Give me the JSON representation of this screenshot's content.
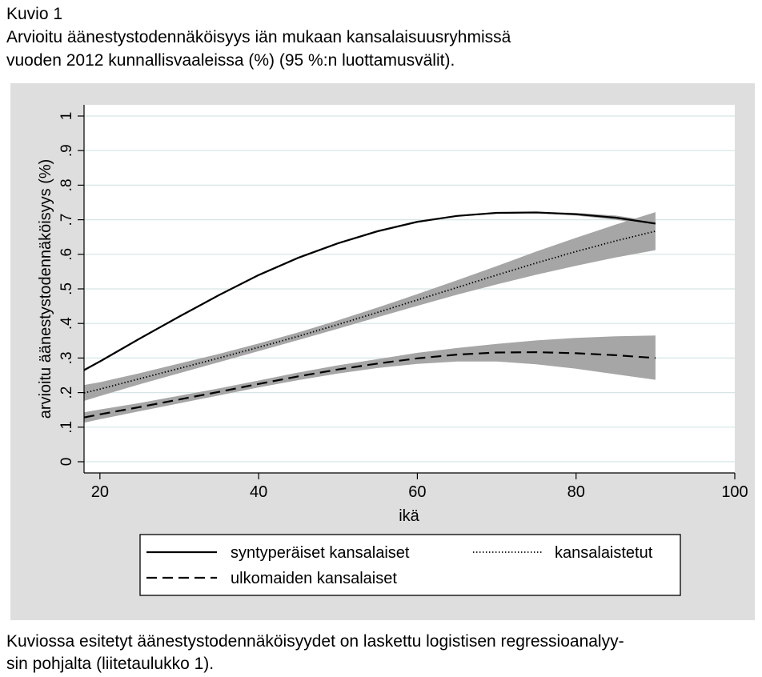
{
  "header": {
    "figure_label": "Kuvio 1",
    "title_line1": "Arvioitu äänestystodennäköisyys iän mukaan kansalaisuusryhmissä",
    "title_line2": "vuoden 2012 kunnallisvaaleissa (%) (95 %:n luottamusvälit)."
  },
  "footer": {
    "line1": "Kuviossa esitetyt äänestystodennäköisyydet on laskettu logistisen regressioanalyy-",
    "line2": "sin pohjalta (liitetaulukko 1)."
  },
  "colors": {
    "panel_background": "#dedede",
    "plot_background": "#ffffff",
    "gridline": "#d6e4e4",
    "confidence_band": "#a6a6a6",
    "line": "#000000"
  },
  "chart_data": {
    "type": "line",
    "title": "",
    "xlabel": "ikä",
    "ylabel": "arvioitu äänestystodennäköisyys (%)",
    "xlim": [
      18,
      100
    ],
    "ylim": [
      0,
      1
    ],
    "xticks": [
      20,
      40,
      60,
      80,
      100
    ],
    "xtick_labels": [
      "20",
      "40",
      "60",
      "80",
      "100"
    ],
    "yticks": [
      0,
      0.1,
      0.2,
      0.3,
      0.4,
      0.5,
      0.6,
      0.7,
      0.8,
      0.9,
      1
    ],
    "ytick_labels": [
      "0",
      ".1",
      ".2",
      ".3",
      ".4",
      ".5",
      ".6",
      ".7",
      ".8",
      ".9",
      "1"
    ],
    "grid": true,
    "legend_position": "bottom",
    "x": [
      18,
      20,
      25,
      30,
      35,
      40,
      45,
      50,
      55,
      60,
      65,
      70,
      75,
      80,
      85,
      90
    ],
    "series": [
      {
        "name": "syntyperäiset kansalaiset",
        "style": "solid",
        "values": [
          0.265,
          0.29,
          0.356,
          0.42,
          0.482,
          0.54,
          0.59,
          0.632,
          0.667,
          0.694,
          0.711,
          0.72,
          0.721,
          0.716,
          0.706,
          0.689
        ],
        "ci_lower": [
          0.262,
          0.287,
          0.353,
          0.417,
          0.479,
          0.537,
          0.587,
          0.629,
          0.664,
          0.691,
          0.709,
          0.718,
          0.719,
          0.712,
          0.7,
          0.683
        ],
        "ci_upper": [
          0.268,
          0.293,
          0.359,
          0.423,
          0.485,
          0.543,
          0.593,
          0.635,
          0.67,
          0.697,
          0.713,
          0.722,
          0.723,
          0.72,
          0.712,
          0.695
        ]
      },
      {
        "name": "kansalaistetut",
        "style": "dotted",
        "values": [
          0.199,
          0.21,
          0.24,
          0.27,
          0.3,
          0.331,
          0.363,
          0.397,
          0.432,
          0.468,
          0.504,
          0.54,
          0.575,
          0.608,
          0.639,
          0.667
        ],
        "ci_lower": [
          0.176,
          0.19,
          0.224,
          0.256,
          0.288,
          0.32,
          0.352,
          0.385,
          0.418,
          0.451,
          0.483,
          0.513,
          0.541,
          0.567,
          0.591,
          0.612
        ],
        "ci_upper": [
          0.222,
          0.23,
          0.256,
          0.284,
          0.312,
          0.342,
          0.374,
          0.409,
          0.446,
          0.485,
          0.525,
          0.566,
          0.608,
          0.648,
          0.686,
          0.722
        ]
      },
      {
        "name": "ulkomaiden kansalaiset",
        "style": "dashed",
        "values": [
          0.128,
          0.137,
          0.158,
          0.18,
          0.202,
          0.225,
          0.247,
          0.267,
          0.284,
          0.299,
          0.31,
          0.316,
          0.317,
          0.314,
          0.308,
          0.3
        ],
        "ci_lower": [
          0.113,
          0.123,
          0.146,
          0.169,
          0.192,
          0.215,
          0.236,
          0.255,
          0.271,
          0.283,
          0.29,
          0.29,
          0.282,
          0.269,
          0.253,
          0.237
        ],
        "ci_upper": [
          0.143,
          0.151,
          0.17,
          0.191,
          0.212,
          0.235,
          0.258,
          0.279,
          0.297,
          0.315,
          0.329,
          0.341,
          0.351,
          0.358,
          0.363,
          0.365
        ]
      }
    ]
  }
}
